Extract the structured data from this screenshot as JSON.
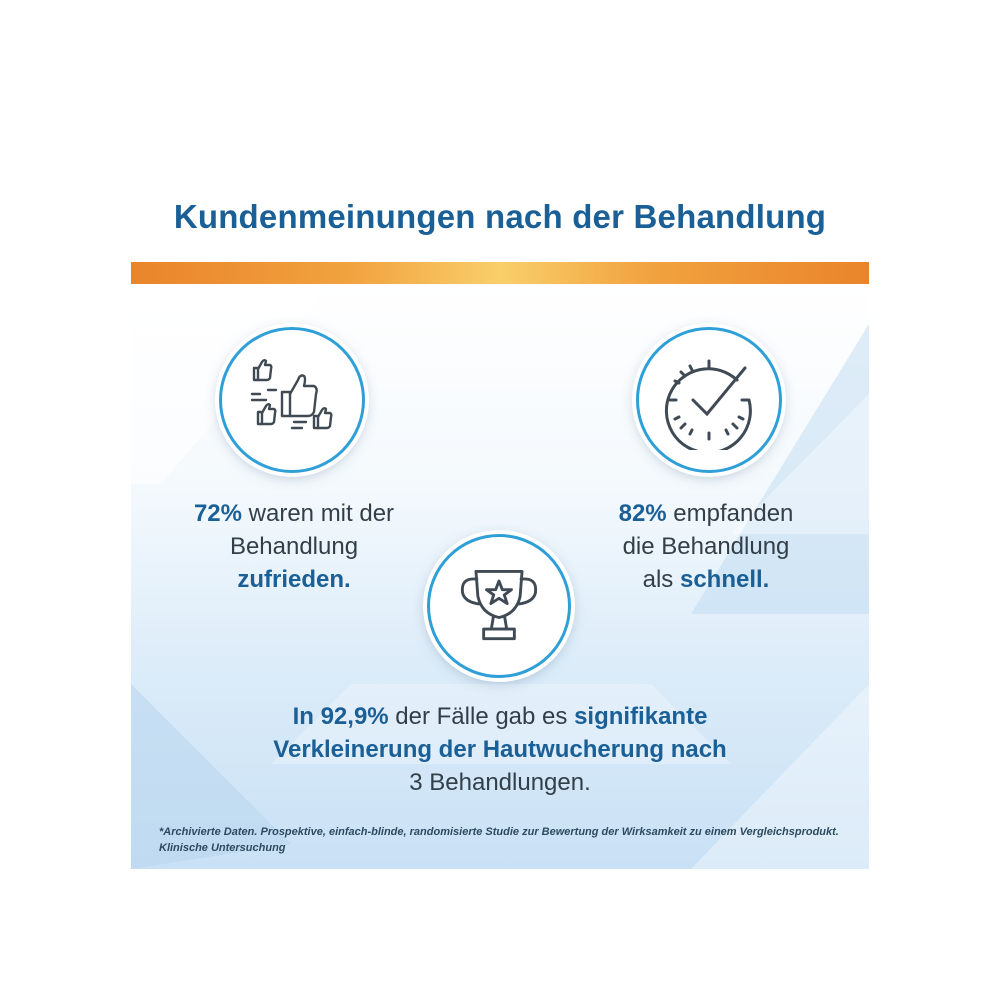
{
  "title": "Kundenmeinungen nach der Behandlung",
  "stat1": {
    "value": "72%",
    "pre": " waren mit der",
    "line2": "Behandlung",
    "emph": "zufrieden."
  },
  "stat2": {
    "value": "82%",
    "pre": " empfanden",
    "line2": "die Behandlung",
    "line3_pre": "als ",
    "emph": "schnell."
  },
  "stat3": {
    "value": "In 92,9%",
    "mid": " der Fälle gab es ",
    "emph1": "signifikante",
    "emph2": "Verkleinerung der Hautwucherung nach",
    "tail": "3 Behandlungen."
  },
  "footnote": "*Archivierte Daten. Prospektive, einfach-blinde, randomisierte Studie zur Bewertung der Wirksamkeit zu einem Vergleichsprodukt. Klinische Untersuchung",
  "icons": [
    "thumbs-up-group-icon",
    "clock-check-icon",
    "trophy-star-icon"
  ],
  "colors": {
    "heading": "#1a5f96",
    "accent_bar": "#e9842a",
    "circle_border": "#2f9fd8",
    "text": "#333f48"
  }
}
